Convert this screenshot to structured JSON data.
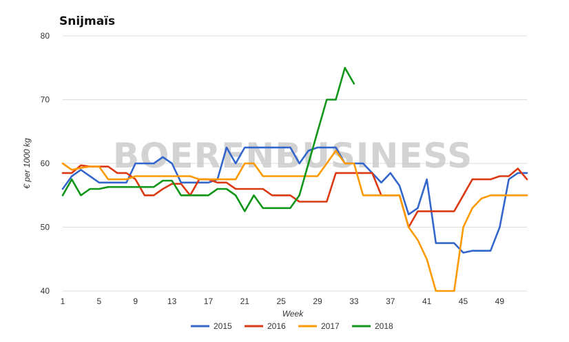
{
  "chart_data": {
    "type": "line",
    "title": "Snijmaïs",
    "xlabel": "Week",
    "ylabel": "€ per 1000 kg",
    "watermark": "BOERENBUSINESS",
    "x_ticks": [
      "1",
      "5",
      "9",
      "13",
      "17",
      "21",
      "25",
      "29",
      "33",
      "37",
      "41",
      "45",
      "49"
    ],
    "y_ticks": [
      "40",
      "50",
      "60",
      "70",
      "80"
    ],
    "xlim": [
      1,
      52
    ],
    "ylim": [
      40,
      80
    ],
    "grid": true,
    "legend_position": "bottom",
    "x": [
      1,
      2,
      3,
      4,
      5,
      6,
      7,
      8,
      9,
      10,
      11,
      12,
      13,
      14,
      15,
      16,
      17,
      18,
      19,
      20,
      21,
      22,
      23,
      24,
      25,
      26,
      27,
      28,
      29,
      30,
      31,
      32,
      33,
      34,
      35,
      36,
      37,
      38,
      39,
      40,
      41,
      42,
      43,
      44,
      45,
      46,
      47,
      48,
      49,
      50,
      51,
      52
    ],
    "series": [
      {
        "name": "2015",
        "color": "#3366cc",
        "values": [
          56,
          58,
          59,
          58,
          57,
          57,
          57,
          57,
          60,
          60,
          60,
          61,
          60,
          57,
          57,
          57,
          57,
          57.5,
          62.5,
          60,
          62.5,
          62.5,
          62.5,
          62.5,
          62.5,
          62.5,
          60,
          62,
          62.5,
          62.5,
          62.5,
          60,
          60,
          60,
          58.5,
          57,
          58.5,
          56.5,
          52,
          53,
          57.5,
          47.5,
          47.5,
          47.5,
          46,
          46.3,
          46.3,
          46.3,
          50,
          57.5,
          58.5,
          58.5
        ]
      },
      {
        "name": "2016",
        "color": "#dc3912",
        "values": [
          58.5,
          58.5,
          59.7,
          59.5,
          59.5,
          59.5,
          58.5,
          58.5,
          57.5,
          55,
          55,
          56,
          56.8,
          56.8,
          55,
          57.5,
          57.5,
          57,
          57,
          56,
          56,
          56,
          56,
          55,
          55,
          55,
          54,
          54,
          54,
          54,
          58.5,
          58.5,
          58.5,
          58.5,
          58.5,
          55,
          55,
          55,
          50,
          52.5,
          52.5,
          52.5,
          52.5,
          52.5,
          55,
          57.5,
          57.5,
          57.5,
          58,
          58,
          59.2,
          57.5
        ]
      },
      {
        "name": "2017",
        "color": "#ff9900",
        "values": [
          60,
          59,
          59.3,
          59.5,
          59.5,
          57.5,
          57.5,
          57.5,
          58,
          58,
          58,
          58,
          58,
          58,
          58,
          57.5,
          57.5,
          57.5,
          57.5,
          57.5,
          60,
          60,
          58,
          58,
          58,
          58,
          58,
          58,
          58,
          60,
          62,
          60,
          60,
          55,
          55,
          55,
          55,
          55,
          50,
          48,
          45,
          40,
          40,
          40,
          50,
          53,
          54.5,
          55,
          55,
          55,
          55,
          55
        ]
      },
      {
        "name": "2018",
        "color": "#109618",
        "values": [
          55,
          57.5,
          55,
          56,
          56,
          56.3,
          56.3,
          56.3,
          56.3,
          56.3,
          56.3,
          57.3,
          57.3,
          55,
          55,
          55,
          55,
          56,
          56,
          55,
          52.5,
          55,
          53,
          53,
          53,
          53,
          55,
          60,
          65,
          70,
          70,
          75,
          72.5,
          null,
          null,
          null,
          null,
          null,
          null,
          null,
          null,
          null,
          null,
          null,
          null,
          null,
          null,
          null,
          null,
          null,
          null,
          null
        ]
      }
    ]
  }
}
